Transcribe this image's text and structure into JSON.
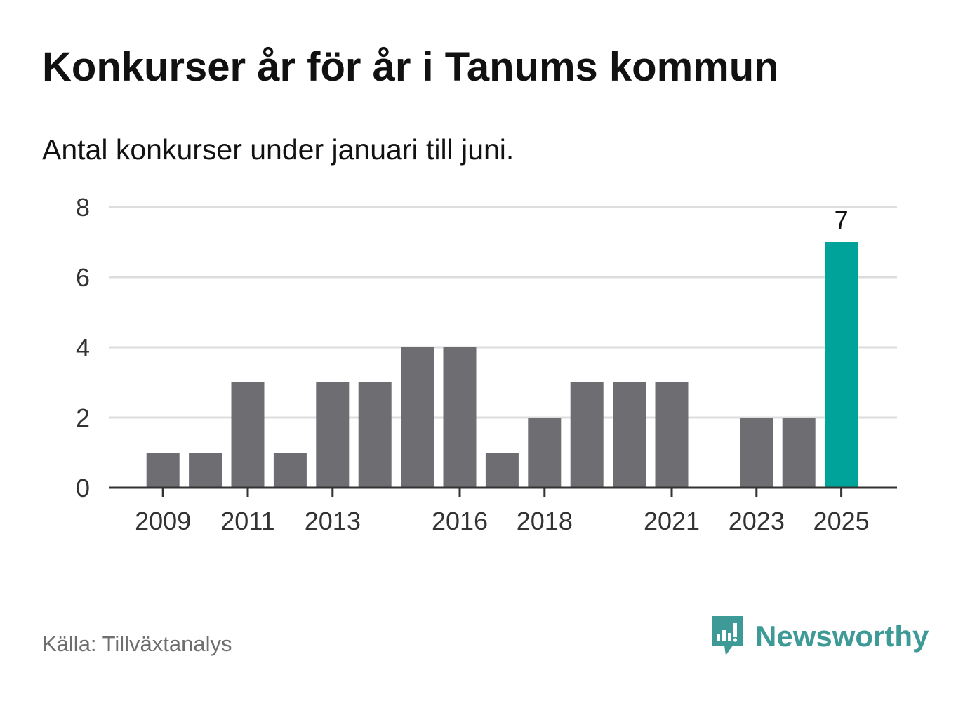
{
  "header": {
    "title": "Konkurser år för år i Tanums kommun",
    "subtitle": "Antal konkurser under januari till juni."
  },
  "footer": {
    "source": "Källa: Tillväxtanalys",
    "brand": "Newsworthy",
    "brand_icon": "newsworthy-logo-icon",
    "brand_color": "#3d9a96"
  },
  "chart_data": {
    "type": "bar",
    "title": "Konkurser år för år i Tanums kommun",
    "subtitle": "Antal konkurser under januari till juni.",
    "xlabel": "",
    "ylabel": "",
    "categories": [
      2009,
      2010,
      2011,
      2012,
      2013,
      2014,
      2015,
      2016,
      2017,
      2018,
      2019,
      2020,
      2021,
      2022,
      2023,
      2024,
      2025
    ],
    "values": [
      1,
      1,
      3,
      1,
      3,
      3,
      4,
      4,
      1,
      2,
      3,
      3,
      3,
      0,
      2,
      2,
      7
    ],
    "x_tick_labels": [
      2009,
      2011,
      2013,
      2016,
      2018,
      2021,
      2023,
      2025
    ],
    "y_ticks": [
      0,
      2,
      4,
      6,
      8
    ],
    "ylim": [
      0,
      8
    ],
    "grid": true,
    "highlight_category": 2025,
    "highlight_label": "7",
    "colors": {
      "bar": "#6e6d72",
      "highlight": "#00a39a",
      "grid": "#dddddd",
      "axis": "#333333"
    }
  }
}
